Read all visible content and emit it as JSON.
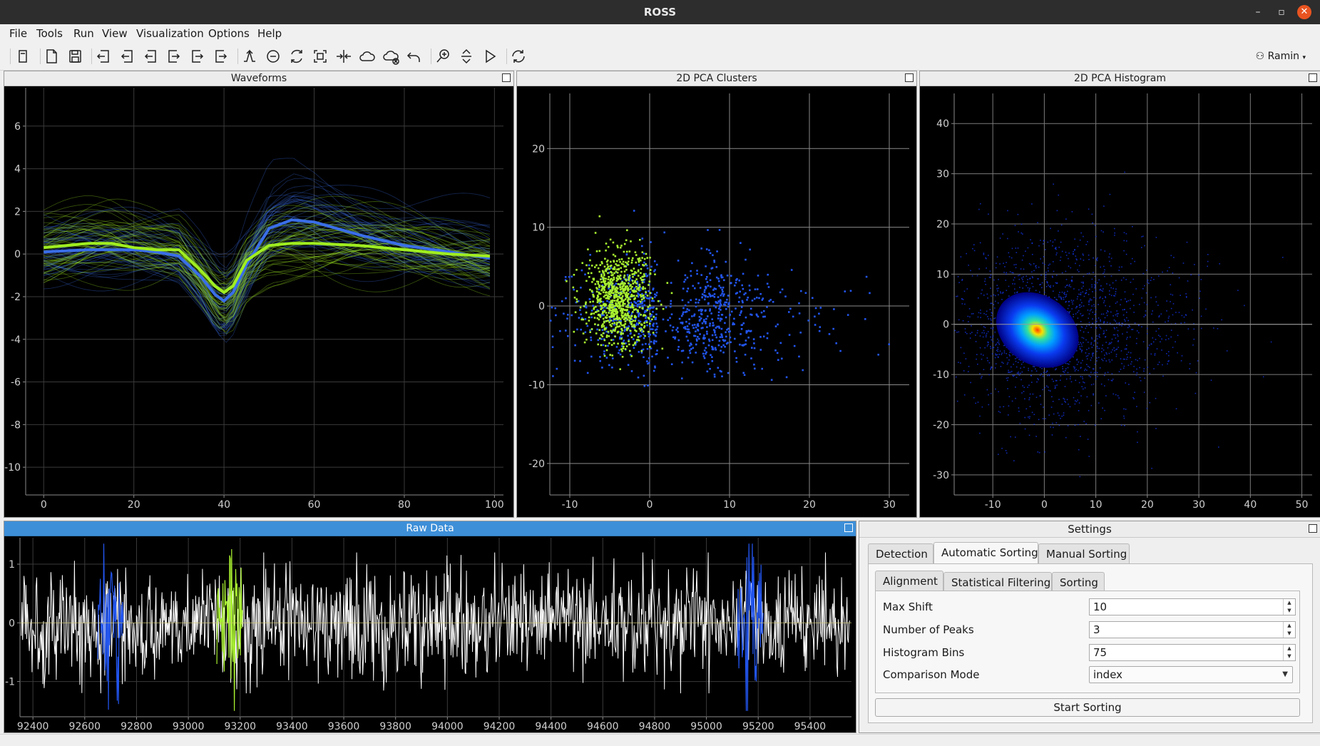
{
  "window": {
    "title": "ROSS",
    "minimize": "–",
    "maximize": "▫",
    "close": "✕"
  },
  "menu": [
    "File",
    "Tools",
    "Run",
    "View",
    "Visualization",
    "Options",
    "Help"
  ],
  "toolbar": {
    "icons": [
      "new-file-icon",
      "open-file-icon",
      "save-icon",
      "import-icon",
      "import-alt-icon",
      "import-back-icon",
      "export-icon",
      "export-alt-icon",
      "export-doc-icon",
      "detect-icon",
      "remove-icon",
      "resort-icon",
      "select-region-icon",
      "merge-icon",
      "cloud-icon",
      "cloud-remove-icon",
      "undo-icon",
      "zoom-icon",
      "vertical-zoom-icon",
      "play-icon",
      "refresh-icon"
    ],
    "user": "Ramin",
    "user_icon": "user-icon"
  },
  "panels": {
    "waveforms": {
      "title": "Waveforms",
      "chart_data": {
        "type": "line",
        "x_ticks": [
          "0",
          "20",
          "40",
          "60",
          "80",
          "100"
        ],
        "y_ticks": [
          "6",
          "4",
          "2",
          "0",
          "-2",
          "-4",
          "-6",
          "-8",
          "-10"
        ],
        "xlim": [
          -4,
          102
        ],
        "ylim": [
          -11.3,
          7.8
        ],
        "series": [
          {
            "color": "#3a6ee8",
            "x": [
              0,
              10,
              20,
              25,
              30,
              35,
              38,
              40,
              42,
              45,
              50,
              55,
              60,
              70,
              80,
              90,
              99
            ],
            "values": [
              0.1,
              0.2,
              0.2,
              0.1,
              -0.1,
              -1.1,
              -1.9,
              -2.2,
              -1.8,
              -0.5,
              1.2,
              1.6,
              1.5,
              0.9,
              0.4,
              0.1,
              -0.2
            ]
          },
          {
            "color": "#a0ee20",
            "x": [
              0,
              10,
              15,
              20,
              25,
              30,
              35,
              38,
              40,
              42,
              45,
              50,
              55,
              60,
              70,
              80,
              90,
              99
            ],
            "values": [
              0.3,
              0.5,
              0.5,
              0.3,
              0.2,
              0.2,
              -0.8,
              -1.5,
              -1.8,
              -1.5,
              -0.3,
              0.4,
              0.5,
              0.5,
              0.4,
              0.2,
              0.0,
              -0.1
            ]
          }
        ]
      }
    },
    "pca_clusters": {
      "title": "2D PCA Clusters",
      "chart_data": {
        "type": "scatter",
        "x_ticks": [
          "-10",
          "0",
          "10",
          "20",
          "30"
        ],
        "y_ticks": [
          "20",
          "10",
          "0",
          "-10",
          "-20"
        ],
        "xlim": [
          -12.5,
          32.5
        ],
        "ylim": [
          -24,
          27
        ],
        "series": [
          {
            "color": "#2255ee",
            "center": [
              1,
              -1
            ],
            "spread": [
              5,
              3.5
            ],
            "count": 900
          },
          {
            "color": "#a8f030",
            "center": [
              -4,
              1
            ],
            "spread": [
              2,
              3
            ],
            "count": 800
          }
        ]
      }
    },
    "pca_histogram": {
      "title": "2D PCA Histogram",
      "chart_data": {
        "type": "heatmap",
        "x_ticks": [
          "-10",
          "0",
          "10",
          "20",
          "30",
          "40",
          "50"
        ],
        "y_ticks": [
          "40",
          "30",
          "20",
          "10",
          "0",
          "-10",
          "-20",
          "-30"
        ],
        "xlim": [
          -17.5,
          52
        ],
        "ylim": [
          -34,
          46
        ],
        "peak": [
          -3,
          0
        ]
      }
    },
    "raw_data": {
      "title": "Raw Data",
      "chart_data": {
        "type": "line",
        "x_ticks": [
          "92400",
          "92600",
          "92800",
          "93000",
          "93200",
          "93400",
          "93600",
          "93800",
          "94000",
          "94200",
          "94400",
          "94600",
          "94800",
          "95000",
          "95200",
          "95400"
        ],
        "y_ticks": [
          "1",
          "0",
          "-1"
        ],
        "xlim": [
          92350,
          95560
        ],
        "ylim": [
          -1.6,
          1.45
        ],
        "trace_color": "#ffffff",
        "spikes": [
          {
            "start": 92650,
            "end": 92750,
            "color": "#2255ee"
          },
          {
            "start": 93110,
            "end": 93210,
            "color": "#a8f030"
          },
          {
            "start": 95120,
            "end": 95220,
            "color": "#2255ee"
          }
        ]
      }
    }
  },
  "settings": {
    "title": "Settings",
    "tabs": [
      "Detection",
      "Automatic Sorting",
      "Manual Sorting"
    ],
    "active_tab": "Automatic Sorting",
    "subtabs": [
      "Alignment",
      "Statistical Filtering",
      "Sorting"
    ],
    "active_subtab": "Alignment",
    "fields": [
      {
        "label": "Max Shift",
        "value": "10",
        "kind": "spin"
      },
      {
        "label": "Number of Peaks",
        "value": "3",
        "kind": "spin"
      },
      {
        "label": "Histogram Bins",
        "value": "75",
        "kind": "spin"
      },
      {
        "label": "Comparison Mode",
        "value": "index",
        "kind": "combo"
      }
    ],
    "start_button": "Start Sorting"
  }
}
